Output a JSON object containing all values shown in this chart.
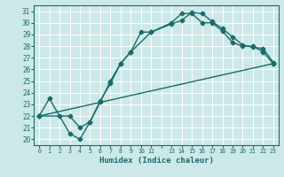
{
  "xlabel": "Humidex (Indice chaleur)",
  "xlim": [
    -0.5,
    23.5
  ],
  "ylim": [
    19.5,
    31.5
  ],
  "xtick_positions": [
    0,
    1,
    2,
    3,
    4,
    5,
    6,
    7,
    8,
    9,
    10,
    11,
    12,
    13,
    14,
    15,
    16,
    17,
    18,
    19,
    20,
    21,
    22,
    23
  ],
  "xtick_labels": [
    "0",
    "1",
    "2",
    "3",
    "4",
    "5",
    "6",
    "7",
    "8",
    "9",
    "10",
    "11",
    "",
    "13",
    "14",
    "15",
    "16",
    "17",
    "18",
    "19",
    "20",
    "21",
    "22",
    "23"
  ],
  "yticks": [
    20,
    21,
    22,
    23,
    24,
    25,
    26,
    27,
    28,
    29,
    30,
    31
  ],
  "background_color": "#cde8e8",
  "grid_color": "#ffffff",
  "line_color": "#1a6b6b",
  "line_width": 1.0,
  "marker": "D",
  "marker_size": 2.5,
  "curve1_x": [
    0,
    1,
    2,
    3,
    4,
    5,
    6,
    7,
    8,
    9,
    11,
    13,
    14,
    15,
    16,
    17,
    18,
    19,
    20,
    21,
    22,
    23
  ],
  "curve1_y": [
    22,
    23.5,
    22,
    20.5,
    20,
    21.5,
    23.3,
    24.8,
    26.5,
    27.5,
    29.2,
    30.0,
    30.8,
    30.8,
    30.0,
    30.0,
    29.3,
    28.3,
    28.0,
    28.0,
    27.5,
    26.5
  ],
  "curve2_x": [
    0,
    3,
    4,
    5,
    6,
    7,
    8,
    9,
    10,
    11,
    13,
    14,
    15,
    16,
    17,
    18,
    19,
    20,
    21,
    22,
    23
  ],
  "curve2_y": [
    22,
    22.0,
    21.0,
    21.5,
    23.2,
    25.0,
    26.5,
    27.5,
    29.2,
    29.2,
    29.9,
    30.2,
    30.9,
    30.8,
    30.1,
    29.5,
    28.8,
    28.1,
    27.9,
    27.8,
    26.6
  ],
  "curve3_x": [
    0,
    23
  ],
  "curve3_y": [
    22,
    26.5
  ]
}
